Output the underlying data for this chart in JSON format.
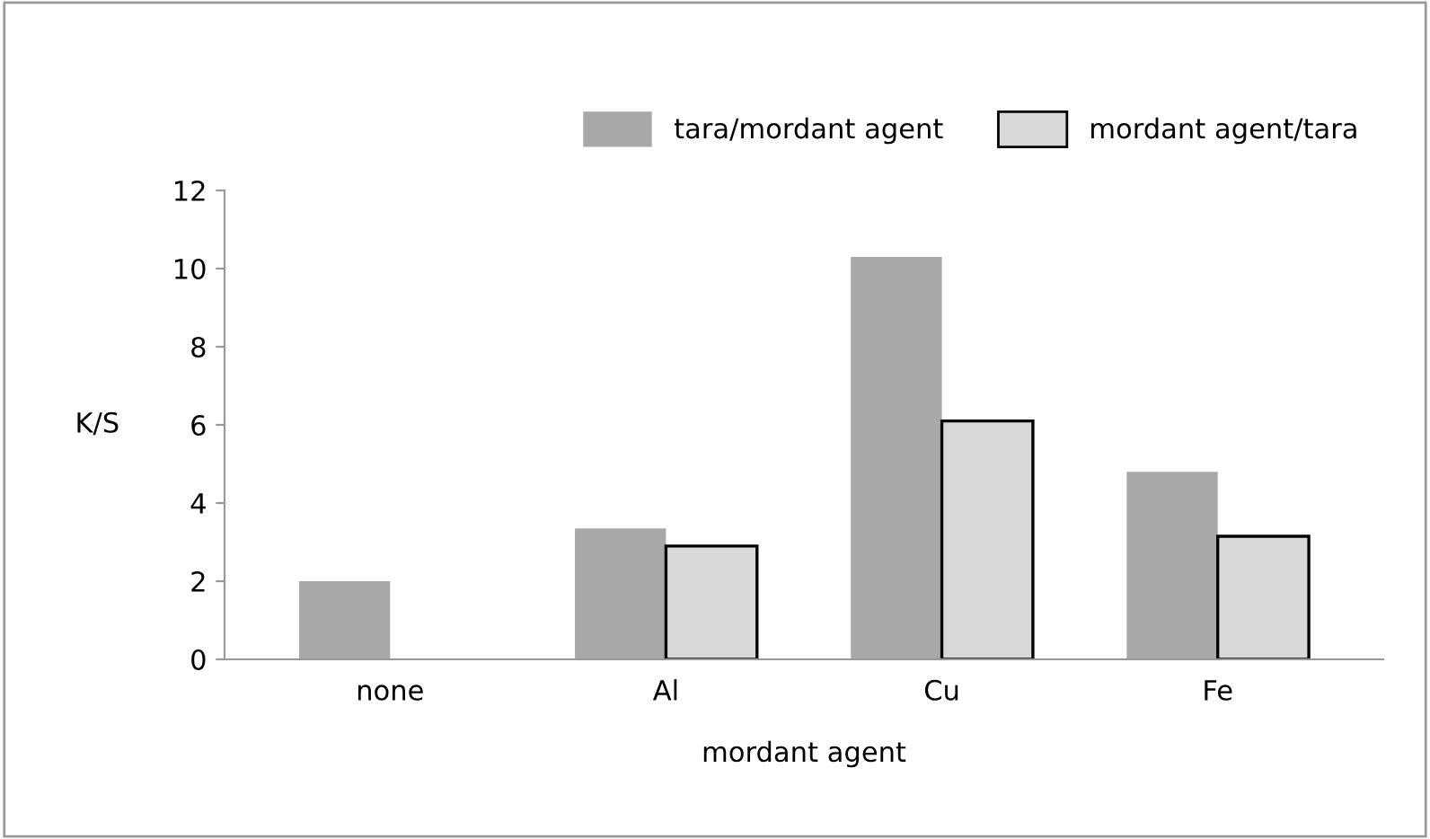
{
  "chart_data": {
    "type": "bar",
    "categories": [
      "none",
      "Al",
      "Cu",
      "Fe"
    ],
    "series": [
      {
        "name": "tara/mordant agent",
        "color": "#a8a8a8",
        "values": [
          2.0,
          3.35,
          10.3,
          4.8
        ]
      },
      {
        "name": "mordant agent/tara",
        "color": "#d9d9d9",
        "values": [
          null,
          2.9,
          6.1,
          3.15
        ]
      }
    ],
    "xlabel": "mordant agent",
    "ylabel": "K/S",
    "ylim": [
      0,
      12
    ],
    "yticks": [
      0,
      2,
      4,
      6,
      8,
      10,
      12
    ],
    "grid": false,
    "legend": "top right"
  }
}
